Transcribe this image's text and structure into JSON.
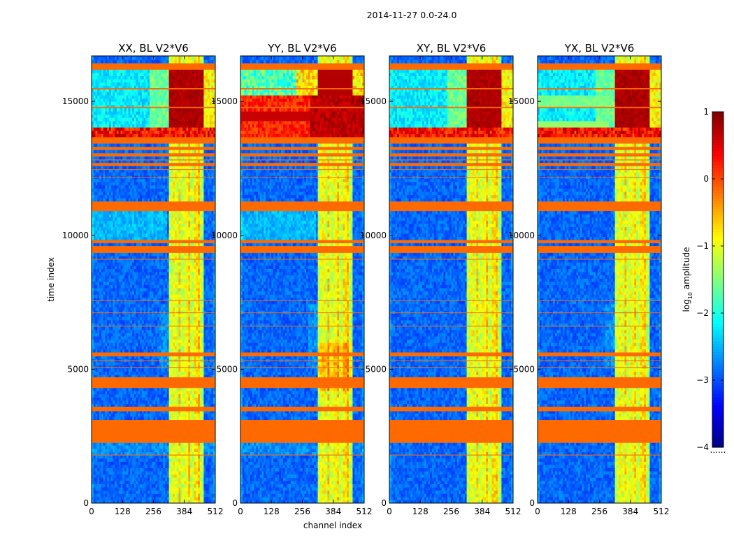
{
  "chart_data": {
    "type": "heatmap",
    "title": "2014-11-27 0.0-24.0",
    "xlabel": "channel index",
    "ylabel": "time index",
    "xlim": [
      0,
      512
    ],
    "ylim": [
      0,
      16700
    ],
    "x_ticks": [
      0,
      128,
      256,
      384,
      512
    ],
    "y_ticks": [
      0,
      5000,
      10000,
      15000
    ],
    "colorbar": {
      "label": "log10 amplitude",
      "label_main": "log",
      "label_sub": "10",
      "label_tail": " amplitude",
      "range": [
        -4,
        1
      ],
      "ticks": [
        1,
        0,
        -1,
        -2,
        -3,
        -4
      ],
      "tick_labels": [
        "1",
        "0",
        "−1",
        "−2",
        "−3",
        "−4"
      ],
      "colormap": "jet",
      "below_label": "......"
    },
    "panels": [
      {
        "name": "XX, BL V2*V6",
        "variant": "xx"
      },
      {
        "name": "YY, BL V2*V6",
        "variant": "yy"
      },
      {
        "name": "XY, BL V2*V6",
        "variant": "xy"
      },
      {
        "name": "YX, BL V2*V6",
        "variant": "yx"
      }
    ],
    "flagged_rows": [
      [
        4300,
        4700
      ],
      [
        9350,
        9600
      ],
      [
        13450,
        13650
      ],
      [
        16250,
        16400
      ],
      [
        3430,
        3600
      ],
      [
        2800,
        3100
      ],
      [
        2250,
        2350
      ],
      [
        2400,
        2460
      ],
      [
        2550,
        2610
      ],
      [
        2680,
        2720
      ],
      [
        1780,
        1810
      ],
      [
        5050,
        5080
      ],
      [
        5300,
        5330
      ],
      [
        5480,
        5510
      ],
      [
        5580,
        5600
      ],
      [
        6600,
        6620
      ],
      [
        7100,
        7120
      ],
      [
        7550,
        7570
      ],
      [
        9100,
        9120
      ],
      [
        9750,
        9790
      ],
      [
        10950,
        11000
      ],
      [
        11100,
        11150
      ],
      [
        11220,
        11250
      ],
      [
        12150,
        12170
      ],
      [
        12450,
        12470
      ],
      [
        12650,
        12670
      ],
      [
        12800,
        12830
      ],
      [
        13000,
        13020
      ],
      [
        13250,
        13280
      ],
      [
        14750,
        14800
      ],
      [
        15450,
        15500
      ]
    ],
    "rfi_channel_bands": [
      [
        322,
        337,
        0.55
      ],
      [
        337,
        352,
        0.72
      ],
      [
        352,
        358,
        0.5
      ],
      [
        358,
        368,
        0.9
      ],
      [
        368,
        386,
        0.55
      ],
      [
        386,
        400,
        0.7
      ],
      [
        400,
        412,
        0.92
      ],
      [
        412,
        424,
        0.52
      ],
      [
        424,
        438,
        0.82
      ],
      [
        438,
        446,
        0.95
      ],
      [
        446,
        458,
        0.5
      ],
      [
        458,
        468,
        0.45
      ]
    ],
    "solar_burst": {
      "t_start": 13650,
      "t_end": 16250
    },
    "color_flagged": "#ff6a00",
    "color_background_low": "#1a4dff"
  }
}
